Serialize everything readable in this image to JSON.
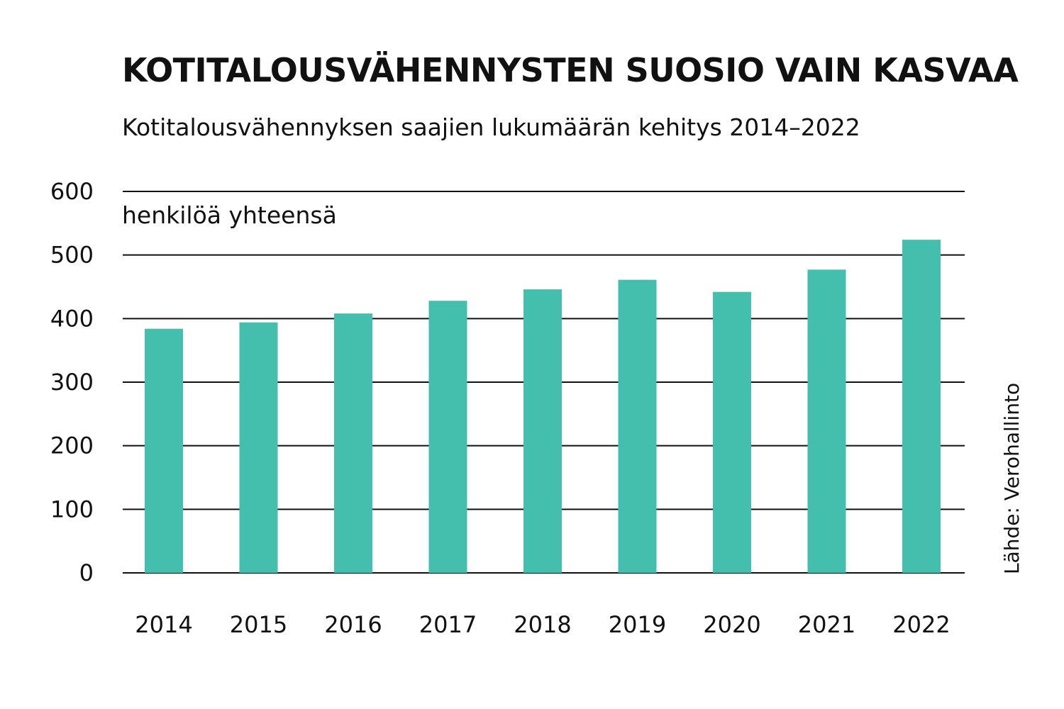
{
  "chart_data": {
    "type": "bar",
    "title": "KOTITALOUSVÄHENNYSTEN SUOSIO VAIN KASVAA",
    "subtitle": "Kotitalousvähennyksen saajien lukumäärän kehitys 2014–2022",
    "ylabel": "henkilöä yhteensä",
    "xlabel": "",
    "source": "Lähde: Verohallinto",
    "categories": [
      "2014",
      "2015",
      "2016",
      "2017",
      "2018",
      "2019",
      "2020",
      "2021",
      "2022"
    ],
    "values": [
      384,
      394,
      408,
      428,
      446,
      461,
      442,
      477,
      524
    ],
    "ylim": [
      0,
      600
    ],
    "yticks": [
      "0",
      "100",
      "200",
      "300",
      "400",
      "500",
      "600"
    ],
    "grid": true,
    "bar_color": "#45bfad"
  }
}
